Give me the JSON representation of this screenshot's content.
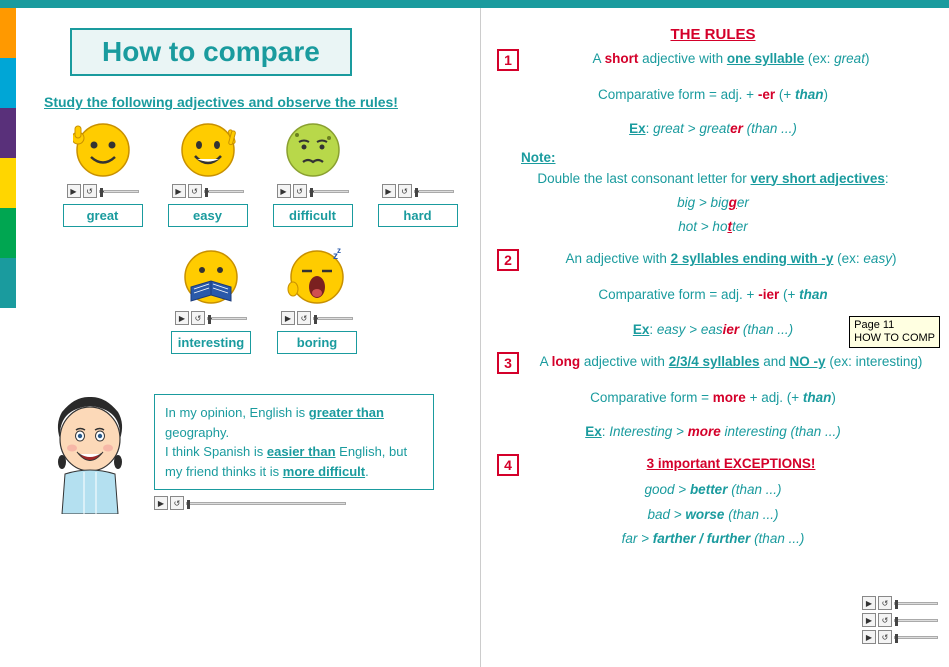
{
  "colors": {
    "teal": "#1a9b9e",
    "red": "#d4002a",
    "yellow": "#ffcc00"
  },
  "left_tabs": [
    "#ff9900",
    "#00a6d6",
    "#59307a",
    "#ffd600",
    "#00a651",
    "#1a9b9e"
  ],
  "title": "How to compare",
  "subtitle": "Study the following adjectives and observe the rules!",
  "adjectives_row1": [
    {
      "label": "great",
      "face": "thumbs"
    },
    {
      "label": "easy",
      "face": "peace"
    },
    {
      "label": "difficult",
      "face": "sick"
    },
    {
      "label": "hard",
      "face": "hard"
    }
  ],
  "adjectives_row2": [
    {
      "label": "interesting",
      "face": "book"
    },
    {
      "label": "boring",
      "face": "yawn"
    }
  ],
  "speech": {
    "l1a": "In my opinion, English is ",
    "l1b": "greater than",
    "l1c": " geography.",
    "l2a": "I think Spanish is ",
    "l2b": "easier than",
    "l2c": " English, but my friend thinks it is ",
    "l2d": "more difficult",
    "l2e": "."
  },
  "rules_title": "THE RULES",
  "rule1": {
    "num": "1",
    "head_a": "A ",
    "head_b": "short",
    "head_c": " adjective with ",
    "head_d": "one syllable",
    "head_e": " (ex: ",
    "head_f": "great",
    "head_g": ")",
    "form_a": "Comparative form = adj. + ",
    "form_b": "-er",
    "form_c": " (+ ",
    "form_d": "than",
    "form_e": ")",
    "ex_label": "Ex",
    "ex_a": ": ",
    "ex_b": "great",
    "ex_c": " > ",
    "ex_d": "great",
    "ex_e": "er",
    "ex_f": " (than ...)",
    "note_label": "Note:",
    "note_a": "Double the last consonant letter for ",
    "note_b": "very short adjectives",
    "note_c": ":",
    "note_ex1_a": "big > big",
    "note_ex1_b": "g",
    "note_ex1_c": "er",
    "note_ex2_a": "hot > ho",
    "note_ex2_b": "t",
    "note_ex2_c": "ter"
  },
  "rule2": {
    "num": "2",
    "head_a": "An adjective with ",
    "head_b": "2 syllables ending with -y",
    "head_c": " (ex: ",
    "head_d": "easy",
    "head_e": ")",
    "form_a": "Comparative form = adj. + ",
    "form_b": "-ier",
    "form_c": " (+ ",
    "form_d": "than",
    "ex_label": "Ex",
    "ex_a": ": ",
    "ex_b": "easy",
    "ex_c": " > ",
    "ex_d": "eas",
    "ex_e": "ier",
    "ex_f": " (than ...)"
  },
  "rule3": {
    "num": "3",
    "head_a": "A ",
    "head_b": "long",
    "head_c": " adjective with ",
    "head_d": "2/3/4 syllables",
    "head_e": " and ",
    "head_f": "NO -y",
    "head_g": " (ex: interesting)",
    "form_a": "Comparative form = ",
    "form_b": "more ",
    "form_c": " + adj. (+ ",
    "form_d": "than",
    "form_e": ")",
    "ex_label": "Ex",
    "ex_a": ": ",
    "ex_b": "Interesting",
    "ex_c": " > ",
    "ex_d": "more",
    "ex_e": " interesting (than ...)"
  },
  "rule4": {
    "num": "4",
    "title": "3 important EXCEPTIONS!",
    "l1_a": "good > ",
    "l1_b": "better",
    "l1_c": " (than ...)",
    "l2_a": "bad > ",
    "l2_b": "worse",
    "l2_c": " (than ...)",
    "l3_a": "far > ",
    "l3_b": "farther / further",
    "l3_c": " (than ...)"
  },
  "tooltip": {
    "l1": "Page 11",
    "l2": "HOW TO COMP"
  }
}
